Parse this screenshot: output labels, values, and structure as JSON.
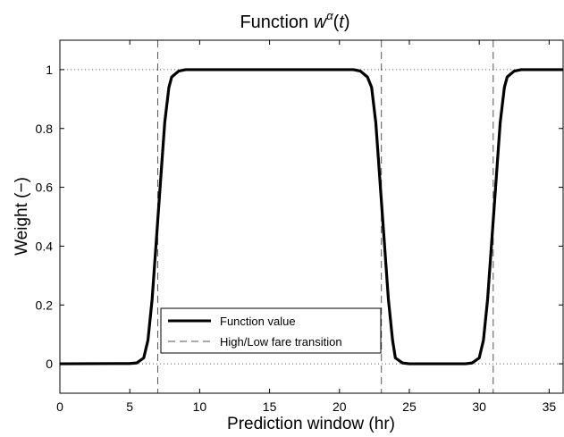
{
  "chart_data": {
    "type": "line",
    "title": {
      "prefix": "Function ",
      "symbol": "w",
      "superscript": "α",
      "open_paren": "(",
      "argument": "t",
      "close_paren": ")"
    },
    "xlabel": "Prediction window (hr)",
    "ylabel": "Weight (−)",
    "xlim": [
      0,
      36
    ],
    "ylim": [
      -0.1,
      1.1
    ],
    "xticks": [
      0,
      5,
      10,
      15,
      20,
      25,
      30,
      35
    ],
    "yticks": [
      0,
      0.2,
      0.4,
      0.6,
      0.8,
      1
    ],
    "ytick_labels": [
      "0",
      "0.2",
      "0.4",
      "0.6",
      "0.8",
      "1"
    ],
    "grid": false,
    "reference_lines_y": [
      0,
      1
    ],
    "legend_position": "bottom-center",
    "series": [
      {
        "name": "Function value",
        "style": "solid",
        "color": "#000000",
        "x": [
          0,
          5.0,
          5.5,
          6.0,
          6.3,
          6.6,
          6.9,
          7.2,
          7.5,
          7.8,
          8.0,
          8.5,
          9.0,
          21.0,
          21.5,
          22.0,
          22.3,
          22.6,
          22.9,
          23.2,
          23.5,
          23.8,
          24.0,
          24.5,
          25.0,
          29.0,
          29.5,
          30.0,
          30.3,
          30.6,
          30.9,
          31.2,
          31.5,
          31.8,
          32.0,
          32.5,
          33.0,
          36.0
        ],
        "y": [
          0,
          0.001,
          0.003,
          0.02,
          0.08,
          0.22,
          0.42,
          0.62,
          0.82,
          0.94,
          0.975,
          0.995,
          1.0,
          1.0,
          0.995,
          0.975,
          0.94,
          0.82,
          0.62,
          0.42,
          0.22,
          0.08,
          0.02,
          0.003,
          0.0,
          0.0,
          0.003,
          0.02,
          0.08,
          0.22,
          0.42,
          0.62,
          0.82,
          0.94,
          0.975,
          0.995,
          1.0,
          1.0
        ]
      },
      {
        "name": "High/Low fare transition",
        "style": "dashed",
        "color": "#555555",
        "vertical_x": [
          7,
          23,
          31
        ]
      }
    ]
  }
}
